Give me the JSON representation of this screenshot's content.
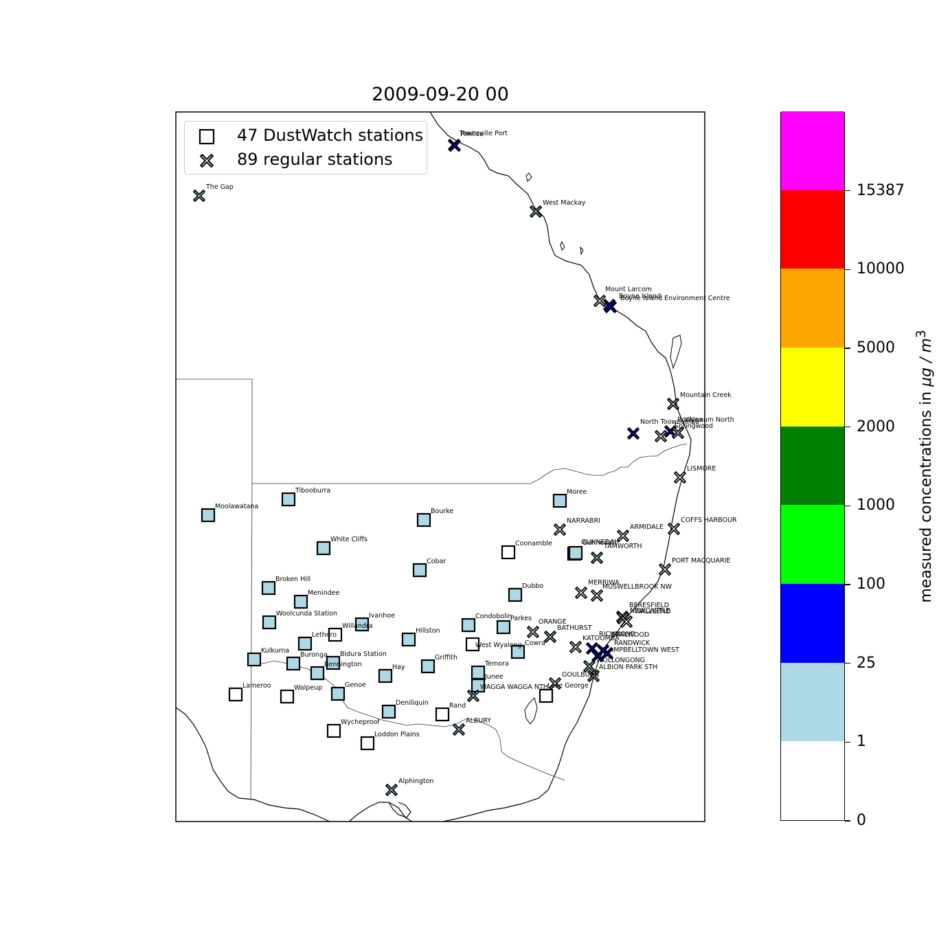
{
  "title": "2009-09-20 00",
  "legend": [
    {
      "symbol": "square",
      "label": "47 DustWatch stations"
    },
    {
      "symbol": "cross",
      "label": "89 regular stations"
    }
  ],
  "colorbar": {
    "label_prefix": "measured concentrations in ",
    "label_unit": "μg / m",
    "label_exponent": "3",
    "ticks": [
      "0",
      "1",
      "25",
      "100",
      "1000",
      "2000",
      "5000",
      "10000",
      "15387"
    ],
    "bins": [
      {
        "from": "0",
        "to": "1",
        "color": "#ffffff"
      },
      {
        "from": "1",
        "to": "25",
        "color": "#add8e6"
      },
      {
        "from": "25",
        "to": "100",
        "color": "#0000ff"
      },
      {
        "from": "100",
        "to": "1000",
        "color": "#00ff00"
      },
      {
        "from": "1000",
        "to": "2000",
        "color": "#008000"
      },
      {
        "from": "2000",
        "to": "5000",
        "color": "#ffff00"
      },
      {
        "from": "5000",
        "to": "10000",
        "color": "#ffa500"
      },
      {
        "from": "10000",
        "to": "15387",
        "color": "#ff0000"
      },
      {
        "from": "15387",
        "to": "",
        "color": "#ff00ff"
      }
    ]
  },
  "stations": [
    {
      "name": "The Gap",
      "type": "cross",
      "level": 1
    },
    {
      "name": "Townsville Port",
      "type": "cross",
      "level": 2
    },
    {
      "name": "Pimlico",
      "type": "cross",
      "level": 2
    },
    {
      "name": "West Mackay",
      "type": "cross",
      "level": 1
    },
    {
      "name": "Mount Larcom",
      "type": "cross",
      "level": 0
    },
    {
      "name": "Boyne Island",
      "type": "cross",
      "level": 2
    },
    {
      "name": "Boyne Island Environment Centre",
      "type": "cross",
      "level": 2
    },
    {
      "name": "Mountain Creek",
      "type": "cross",
      "level": 1
    },
    {
      "name": "North Toowoomba",
      "type": "cross",
      "level": 2
    },
    {
      "name": "Rocklea",
      "type": "cross",
      "level": 2
    },
    {
      "name": "Springwood",
      "type": "cross",
      "level": 0
    },
    {
      "name": "Wynnum North",
      "type": "cross",
      "level": 1
    },
    {
      "name": "LISMORE",
      "type": "cross",
      "level": 0
    },
    {
      "name": "Moolawatana",
      "type": "square",
      "level": 1
    },
    {
      "name": "Tibooburra",
      "type": "square",
      "level": 1
    },
    {
      "name": "Moree",
      "type": "square",
      "level": 1
    },
    {
      "name": "Bourke",
      "type": "square",
      "level": 1
    },
    {
      "name": "NARRABRI",
      "type": "cross",
      "level": 0
    },
    {
      "name": "ARMIDALE",
      "type": "cross",
      "level": 0
    },
    {
      "name": "COFFS HARBOUR",
      "type": "cross",
      "level": 0
    },
    {
      "name": "White Cliffs",
      "type": "square",
      "level": 1
    },
    {
      "name": "Coonamble",
      "type": "square",
      "level": 0
    },
    {
      "name": "GUNNEDAH",
      "type": "square",
      "level": 1
    },
    {
      "name": "Gunnedah",
      "type": "square",
      "level": 1
    },
    {
      "name": "TAMWORTH",
      "type": "cross",
      "level": 1
    },
    {
      "name": "Cobar",
      "type": "square",
      "level": 1
    },
    {
      "name": "PORT MACQUARIE",
      "type": "cross",
      "level": 0
    },
    {
      "name": "Broken Hill",
      "type": "square",
      "level": 1
    },
    {
      "name": "Dubbo",
      "type": "square",
      "level": 1
    },
    {
      "name": "MERRIWA",
      "type": "cross",
      "level": 0
    },
    {
      "name": "MUSWELLBROOK NW",
      "type": "cross",
      "level": 0
    },
    {
      "name": "Menindee",
      "type": "square",
      "level": 1
    },
    {
      "name": "Woolcunda Station",
      "type": "square",
      "level": 1
    },
    {
      "name": "Ivanhoe",
      "type": "square",
      "level": 1
    },
    {
      "name": "Condobolin",
      "type": "square",
      "level": 1
    },
    {
      "name": "Parkes",
      "type": "square",
      "level": 1
    },
    {
      "name": "BERESFIELD",
      "type": "cross",
      "level": 0
    },
    {
      "name": "NEWCASTLE",
      "type": "cross",
      "level": 1
    },
    {
      "name": "WALLSEND",
      "type": "cross",
      "level": 0
    },
    {
      "name": "Willandra",
      "type": "square",
      "level": 0
    },
    {
      "name": "Hillston",
      "type": "square",
      "level": 1
    },
    {
      "name": "Lethero",
      "type": "square",
      "level": 1
    },
    {
      "name": "ORANGE",
      "type": "cross",
      "level": 0
    },
    {
      "name": "BATHURST",
      "type": "cross",
      "level": 1
    },
    {
      "name": "Cowra",
      "type": "square",
      "level": 1
    },
    {
      "name": "West Wyalong",
      "type": "square",
      "level": 0
    },
    {
      "name": "KATOOMBA",
      "type": "cross",
      "level": 0
    },
    {
      "name": "RICHMOND",
      "type": "cross",
      "level": 2
    },
    {
      "name": "CAMPBELLTOWN WEST",
      "type": "cross",
      "level": 2
    },
    {
      "name": "RANDWICK",
      "type": "cross",
      "level": 2
    },
    {
      "name": "EARLWOOD",
      "type": "cross",
      "level": 2
    },
    {
      "name": "Kulkurna",
      "type": "square",
      "level": 1
    },
    {
      "name": "Buronga",
      "type": "square",
      "level": 1
    },
    {
      "name": "Bidura Station",
      "type": "square",
      "level": 1
    },
    {
      "name": "Bennington",
      "type": "square",
      "level": 1
    },
    {
      "name": "Griffith",
      "type": "square",
      "level": 1
    },
    {
      "name": "Temora",
      "type": "square",
      "level": 1
    },
    {
      "name": "Hay",
      "type": "square",
      "level": 1
    },
    {
      "name": "WOLLONGONG",
      "type": "cross",
      "level": 1
    },
    {
      "name": "ALBION PARK STH",
      "type": "cross",
      "level": 1
    },
    {
      "name": "Junee",
      "type": "square",
      "level": 1
    },
    {
      "name": "GOULBURN",
      "type": "cross",
      "level": 0
    },
    {
      "name": "Lake George",
      "type": "square",
      "level": 0
    },
    {
      "name": "WAGGA WAGGA NTH",
      "type": "cross",
      "level": 1
    },
    {
      "name": "Lameroo",
      "type": "square",
      "level": 0
    },
    {
      "name": "Walpeup",
      "type": "square",
      "level": 0
    },
    {
      "name": "Genoe",
      "type": "square",
      "level": 1
    },
    {
      "name": "Deniliquin",
      "type": "square",
      "level": 1
    },
    {
      "name": "Rand",
      "type": "square",
      "level": 0
    },
    {
      "name": "ALBURY",
      "type": "cross",
      "level": 1
    },
    {
      "name": "Wycheproof",
      "type": "square",
      "level": 0
    },
    {
      "name": "Loddon Plains",
      "type": "square",
      "level": 0
    },
    {
      "name": "Alphington",
      "type": "cross",
      "level": 1
    }
  ]
}
